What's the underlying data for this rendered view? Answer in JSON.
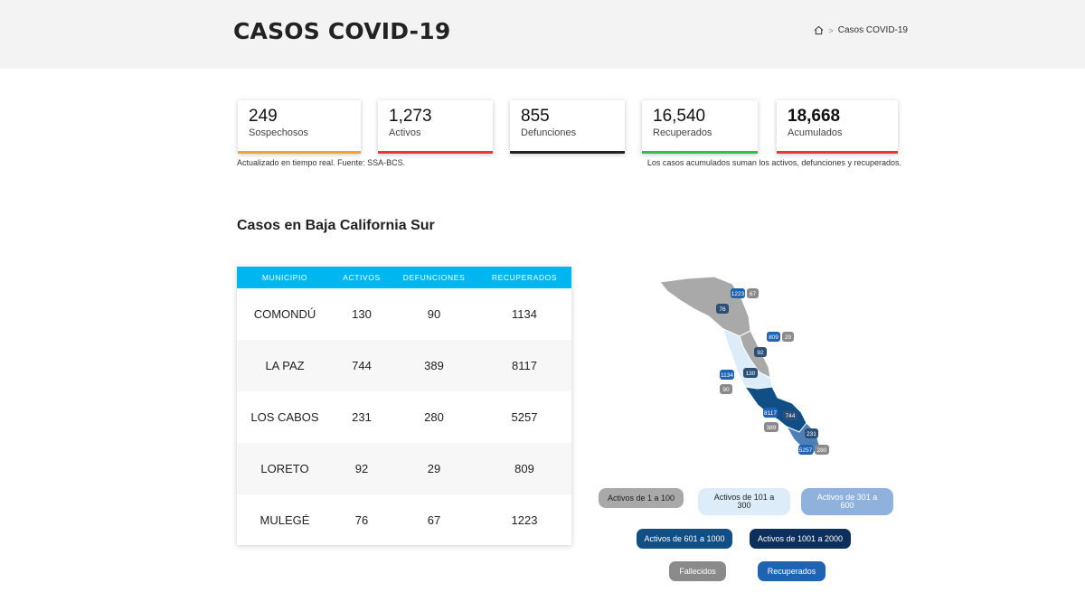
{
  "header": {
    "title": "CASOS COVID-19",
    "breadcrumb": {
      "home_icon": "home-icon",
      "separator": ">",
      "current": "Casos COVID-19"
    }
  },
  "stats": [
    {
      "value": "249",
      "label": "Sospechosos",
      "color": "#f0a33a"
    },
    {
      "value": "1,273",
      "label": "Activos",
      "color": "#e53935"
    },
    {
      "value": "855",
      "label": "Defunciones",
      "color": "#222222"
    },
    {
      "value": "16,540",
      "label": "Recuperados",
      "color": "#2fbf4a"
    },
    {
      "value": "18,668",
      "label": "Acumulados",
      "color": "#e53935"
    }
  ],
  "notes": {
    "left": "Actualizado en tiempo real. Fuente: SSA-BCS.",
    "right": "Los casos acumulados suman los activos, defunciones y recuperados."
  },
  "section_title": "Casos en Baja California Sur",
  "table": {
    "columns": [
      "MUNICIPIO",
      "ACTIVOS",
      "DEFUNCIONES",
      "RECUPERADOS"
    ],
    "rows": [
      [
        "COMONDÚ",
        "130",
        "90",
        "1134"
      ],
      [
        "LA PAZ",
        "744",
        "389",
        "8117"
      ],
      [
        "LOS CABOS",
        "231",
        "280",
        "5257"
      ],
      [
        "LORETO",
        "92",
        "29",
        "809"
      ],
      [
        "MULEGÉ",
        "76",
        "67",
        "1223"
      ]
    ]
  },
  "map": {
    "badges": {
      "mulege_recovered": "1223",
      "mulege_deaths": "67",
      "mulege_active": "76",
      "loreto_recovered": "809",
      "loreto_deaths": "29",
      "loreto_active": "92",
      "comondu_recovered": "1134",
      "comondu_deaths": "90",
      "comondu_active": "130",
      "lapaz_recovered": "8117",
      "lapaz_active": "744",
      "lapaz_deaths": "389",
      "loscabos_active": "231",
      "loscabos_recovered": "5257",
      "loscabos_deaths": "280"
    },
    "colors": {
      "gray": "#a9a9a9",
      "light_blue": "#dcecf9",
      "mid_blue": "#8fb2dd",
      "dark_blue": "#0f4f85",
      "navy": "#0d2f5c",
      "recovered": "#1f63b3"
    }
  },
  "legend": [
    {
      "label": "Activos de 1 a 100"
    },
    {
      "label": "Activos de 101 a 300"
    },
    {
      "label": "Activos de 301 a 600"
    },
    {
      "label": "Activos de 601 a 1000"
    },
    {
      "label": "Activos de 1001 a 2000"
    },
    {
      "label": "Fallecidos"
    },
    {
      "label": "Recuperados"
    }
  ]
}
